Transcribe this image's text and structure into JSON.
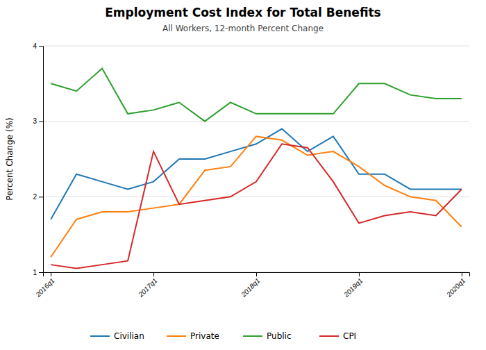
{
  "chart_data": {
    "type": "line",
    "title": "Employment Cost Index for Total Benefits",
    "subtitle": "All Workers, 12-month Percent Change",
    "y_label": "Percent Change (%)",
    "categories": [
      "2016q1",
      null,
      null,
      null,
      "2017q1",
      null,
      null,
      null,
      "2018q1",
      null,
      null,
      null,
      "2019q1",
      null,
      null,
      null,
      "2020q1"
    ],
    "series": [
      {
        "name": "Civilian",
        "values": [
          1.7,
          2.3,
          2.2,
          2.1,
          2.2,
          2.5,
          2.5,
          2.6,
          2.7,
          2.9,
          2.6,
          2.8,
          2.3,
          2.3,
          2.1,
          2.1,
          2.1
        ]
      },
      {
        "name": "Private",
        "values": [
          1.2,
          1.7,
          1.8,
          1.8,
          1.85,
          1.9,
          2.35,
          2.4,
          2.8,
          2.75,
          2.55,
          2.6,
          2.4,
          2.15,
          2.0,
          1.95,
          1.6
        ]
      },
      {
        "name": "Public",
        "values": [
          3.5,
          3.4,
          3.7,
          3.1,
          3.15,
          3.25,
          3.0,
          3.25,
          3.1,
          3.1,
          3.1,
          3.1,
          3.5,
          3.5,
          3.35,
          3.3,
          3.3
        ]
      },
      {
        "name": "CPI",
        "values": [
          1.1,
          1.05,
          1.1,
          1.15,
          2.6,
          1.9,
          1.95,
          2.0,
          2.2,
          2.7,
          2.65,
          2.2,
          1.65,
          1.75,
          1.8,
          1.75,
          2.1
        ]
      }
    ],
    "ylim": [
      1.0,
      4.0
    ],
    "yticks": [
      1,
      2,
      3,
      4
    ],
    "grid": true,
    "legend": "bottom"
  }
}
